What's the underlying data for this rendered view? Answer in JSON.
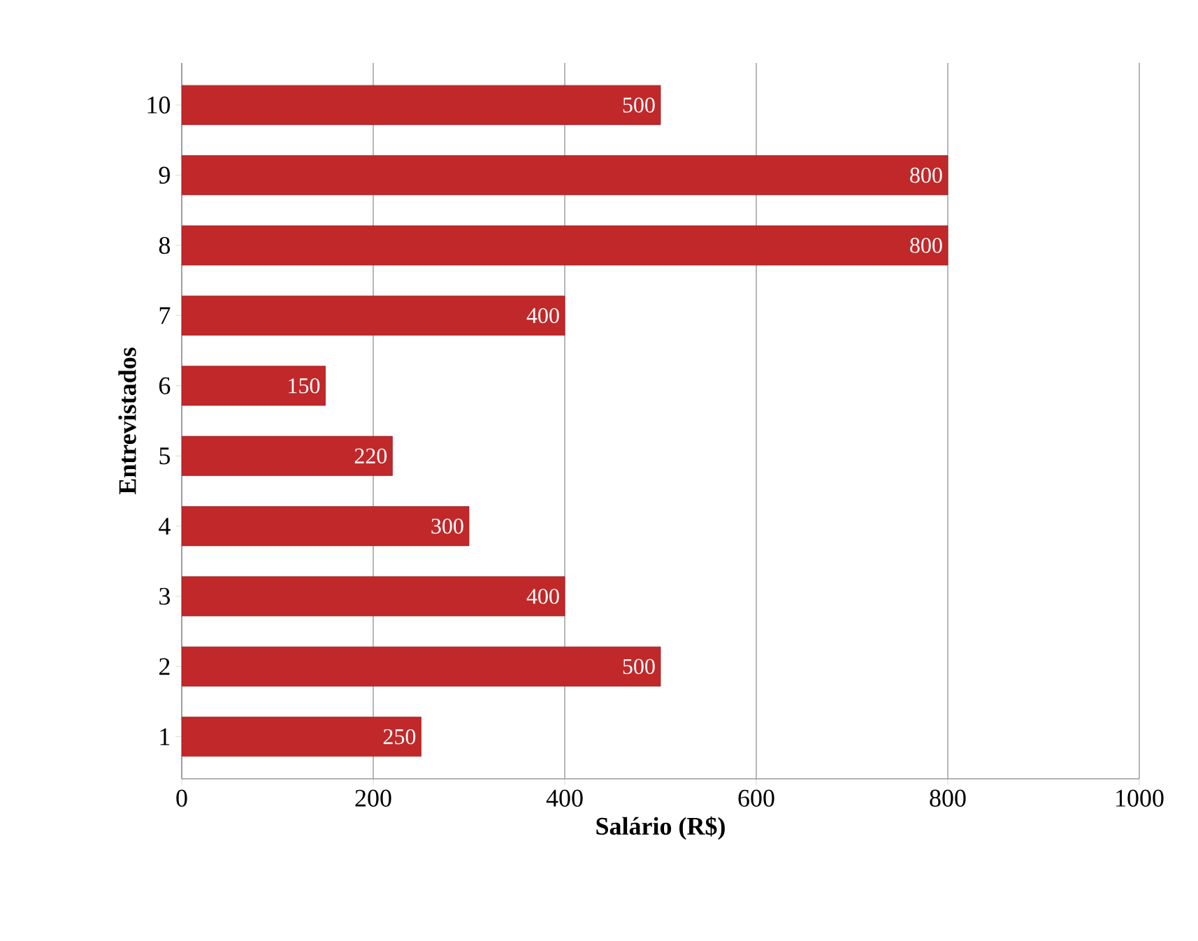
{
  "chart_data": {
    "type": "bar",
    "orientation": "horizontal",
    "xlabel": "Salário (R$)",
    "ylabel": "Entrevistados",
    "categories": [
      "10",
      "9",
      "8",
      "7",
      "6",
      "5",
      "4",
      "3",
      "2",
      "1"
    ],
    "values": [
      500,
      800,
      800,
      400,
      150,
      220,
      300,
      400,
      500,
      250
    ],
    "color": "#c0282a",
    "xlim": [
      0,
      1000
    ],
    "xticks": [
      0,
      200,
      400,
      600,
      800,
      1000
    ],
    "grid": "x",
    "data_labels": true
  }
}
